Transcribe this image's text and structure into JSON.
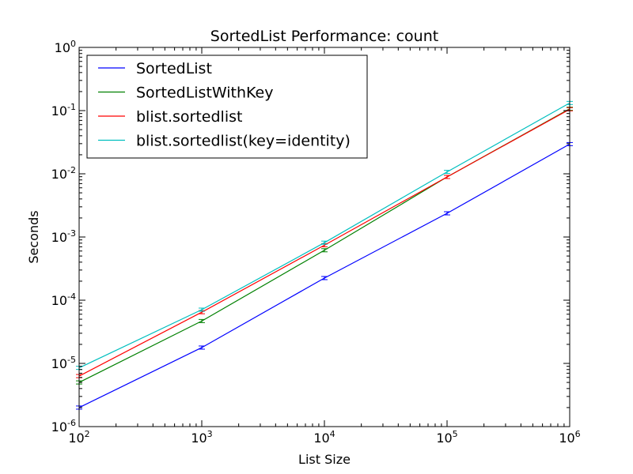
{
  "chart_data": {
    "type": "line",
    "title": "SortedList Performance: count",
    "xlabel": "List Size",
    "ylabel": "Seconds",
    "xscale": "log",
    "yscale": "log",
    "xlim": [
      100,
      1000000
    ],
    "ylim": [
      1e-06,
      1
    ],
    "grid": false,
    "legend_position": "top-left",
    "x": [
      100,
      1000,
      10000,
      100000,
      1000000
    ],
    "x_tick_labels": [
      {
        "base": "10",
        "exp": "2"
      },
      {
        "base": "10",
        "exp": "3"
      },
      {
        "base": "10",
        "exp": "4"
      },
      {
        "base": "10",
        "exp": "5"
      },
      {
        "base": "10",
        "exp": "6"
      }
    ],
    "y_tick_labels": [
      {
        "base": "10",
        "exp": "-6",
        "value": 1e-06
      },
      {
        "base": "10",
        "exp": "-5",
        "value": 1e-05
      },
      {
        "base": "10",
        "exp": "-4",
        "value": 0.0001
      },
      {
        "base": "10",
        "exp": "-3",
        "value": 0.001
      },
      {
        "base": "10",
        "exp": "-2",
        "value": 0.01
      },
      {
        "base": "10",
        "exp": "-1",
        "value": 0.1
      },
      {
        "base": "10",
        "exp": "0",
        "value": 1
      }
    ],
    "series": [
      {
        "name": "SortedList",
        "color": "#0000ff",
        "values": [
          2e-06,
          1.78e-05,
          0.000224,
          0.00237,
          0.0295
        ]
      },
      {
        "name": "SortedListWithKey",
        "color": "#008000",
        "values": [
          5e-06,
          4.68e-05,
          0.000617,
          0.00891,
          0.107
        ]
      },
      {
        "name": "blist.sortedlist",
        "color": "#ff0000",
        "values": [
          6.3e-06,
          6.46e-05,
          0.000741,
          0.00891,
          0.105
        ]
      },
      {
        "name": "blist.sortedlist(key=identity)",
        "color": "#00bfbf",
        "values": [
          8.5e-06,
          7.08e-05,
          0.000813,
          0.0107,
          0.132
        ]
      }
    ]
  }
}
